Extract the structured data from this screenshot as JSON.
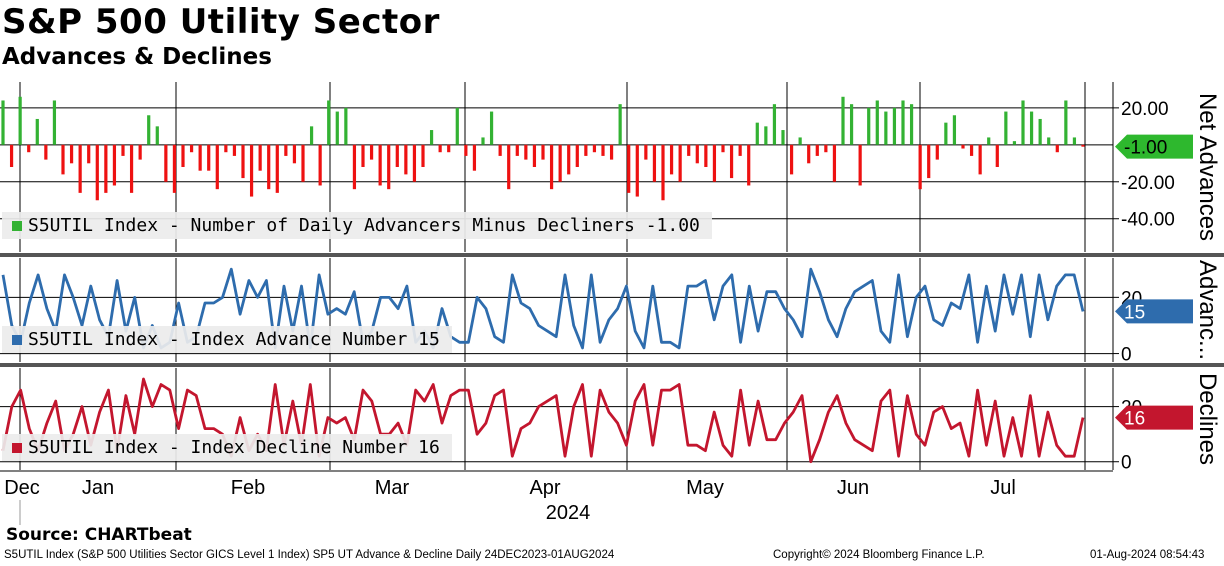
{
  "chart_data": {
    "title": "S&P 500 Utility Sector",
    "subtitle": "Advances & Declines",
    "x_axis": {
      "months": [
        "Dec",
        "Jan",
        "Feb",
        "Mar",
        "Apr",
        "May",
        "Jun",
        "Jul"
      ],
      "year_label": "2024",
      "range": [
        "2023-12-24",
        "2024-08-01"
      ]
    },
    "panels": [
      {
        "type": "bar",
        "series_name": "S5UTIL Index - Number of Daily Advancers Minus Decliners",
        "legend": "S5UTIL Index - Number of Daily Advancers Minus Decliners -1.00",
        "axis_title": "Net Advances",
        "last_value_label": "-1.00",
        "yticks": [
          "20.00",
          "-20.00",
          "-40.00"
        ],
        "ylim": [
          -58,
          34
        ],
        "pos_color": "#33b233",
        "neg_color": "#ee1111",
        "values": [
          24,
          -12,
          26,
          -4,
          14,
          -8,
          24,
          -16,
          -10,
          -26,
          -10,
          -30,
          -26,
          -22,
          -6,
          -26,
          -8,
          16,
          10,
          -20,
          -26,
          -12,
          -4,
          -14,
          -14,
          -24,
          -4,
          -6,
          -18,
          -28,
          -14,
          -24,
          -26,
          -6,
          -10,
          -20,
          10,
          -22,
          24,
          18,
          20,
          -24,
          -12,
          -8,
          -22,
          -24,
          -12,
          -16,
          -20,
          -12,
          8,
          -4,
          -4,
          20,
          -6,
          -14,
          4,
          18,
          -6,
          -24,
          -6,
          -8,
          -12,
          -8,
          -24,
          -20,
          -16,
          -12,
          -6,
          -4,
          -6,
          -8,
          22,
          -26,
          -28,
          -8,
          -20,
          -30,
          -16,
          -20,
          -6,
          -10,
          -12,
          -20,
          -4,
          -18,
          -6,
          -22,
          12,
          10,
          22,
          8,
          -16,
          4,
          -10,
          -6,
          -4,
          -20,
          26,
          22,
          -22,
          20,
          24,
          18,
          20,
          24,
          22,
          -24,
          -18,
          -8,
          12,
          16,
          -2,
          -6,
          -16,
          4,
          -12,
          18,
          2,
          24,
          18,
          14,
          4,
          -4,
          24,
          4,
          -1
        ],
        "highlight_values": [
          26,
          28,
          22,
          12,
          20,
          26,
          30,
          22,
          30,
          14,
          30,
          22,
          16,
          18,
          28,
          24,
          22,
          26,
          14,
          14,
          28,
          26,
          28,
          26,
          28,
          30,
          14,
          28,
          28,
          24,
          12,
          14,
          22,
          20,
          20,
          22,
          24,
          30,
          30,
          24,
          24,
          28,
          20,
          10,
          -24,
          -12,
          -6,
          -20,
          -24,
          -26,
          -12,
          -12,
          -6,
          -14,
          -8,
          -20,
          -16,
          -24,
          -4,
          -10,
          -8,
          -12,
          -12,
          -10,
          -8,
          -4,
          -6,
          -4,
          -6,
          -8,
          -10,
          -12,
          -14,
          -16,
          -18,
          -20,
          -22,
          -24,
          -26,
          -28,
          -30,
          -32,
          -34,
          -36,
          -38,
          -40
        ],
        "_note_unused": ""
      },
      {
        "type": "line",
        "series_name": "S5UTIL Index - Index Advance Number",
        "legend": "S5UTIL Index - Index Advance Number 15",
        "axis_title": "Advanc...",
        "last_value_label": "15",
        "yticks": [
          "20",
          "0"
        ],
        "ylim": [
          -3,
          34
        ],
        "color": "#2e6cad",
        "values": [
          28,
          10,
          4,
          18,
          28,
          16,
          8,
          28,
          20,
          10,
          24,
          12,
          6,
          26,
          8,
          20,
          2,
          10,
          2,
          4,
          18,
          4,
          6,
          18,
          18,
          20,
          30,
          14,
          26,
          20,
          26,
          2,
          24,
          8,
          24,
          2,
          28,
          14,
          16,
          14,
          22,
          4,
          8,
          20,
          20,
          16,
          24,
          4,
          8,
          2,
          16,
          6,
          4,
          4,
          20,
          16,
          6,
          4,
          28,
          18,
          16,
          10,
          8,
          6,
          28,
          10,
          2,
          28,
          4,
          12,
          16,
          24,
          8,
          2,
          24,
          4,
          4,
          2,
          24,
          24,
          26,
          12,
          24,
          28,
          4,
          24,
          8,
          22,
          22,
          16,
          12,
          6,
          30,
          22,
          12,
          6,
          16,
          22,
          24,
          26,
          8,
          4,
          28,
          6,
          20,
          24,
          12,
          10,
          18,
          16,
          28,
          4,
          24,
          8,
          28,
          14,
          28,
          6,
          28,
          12,
          24,
          28,
          28,
          15
        ]
      },
      {
        "type": "line",
        "series_name": "S5UTIL Index - Index Decline Number",
        "legend": "S5UTIL Index - Index Decline Number 16",
        "axis_title": "Declines",
        "last_value_label": "16",
        "yticks": [
          "20",
          "0"
        ],
        "ylim": [
          -3,
          34
        ],
        "color": "#c3162e",
        "values": [
          4,
          20,
          26,
          12,
          4,
          14,
          22,
          4,
          10,
          20,
          6,
          18,
          26,
          4,
          24,
          10,
          30,
          20,
          28,
          26,
          12,
          26,
          24,
          12,
          12,
          10,
          2,
          16,
          4,
          10,
          4,
          28,
          6,
          22,
          6,
          28,
          2,
          16,
          14,
          16,
          8,
          26,
          22,
          10,
          10,
          14,
          6,
          26,
          22,
          28,
          14,
          24,
          26,
          26,
          10,
          14,
          24,
          26,
          2,
          12,
          14,
          20,
          22,
          24,
          2,
          20,
          28,
          2,
          26,
          18,
          14,
          6,
          22,
          28,
          6,
          26,
          26,
          28,
          6,
          6,
          4,
          18,
          6,
          2,
          26,
          6,
          22,
          8,
          8,
          14,
          18,
          24,
          0,
          8,
          18,
          24,
          14,
          8,
          6,
          4,
          22,
          26,
          2,
          24,
          10,
          6,
          18,
          20,
          12,
          14,
          2,
          26,
          6,
          22,
          2,
          16,
          2,
          24,
          2,
          18,
          6,
          2,
          2,
          16
        ]
      }
    ]
  },
  "footer": {
    "source": "Source: CHARTbeat",
    "description": "S5UTIL Index (S&P 500 Utilities Sector GICS Level 1 Index) SP5 UT Advance & Decline  Daily 24DEC2023-01AUG2024",
    "copyright": "Copyright© 2024 Bloomberg Finance L.P.",
    "timestamp": "01-Aug-2024 08:54:43"
  }
}
